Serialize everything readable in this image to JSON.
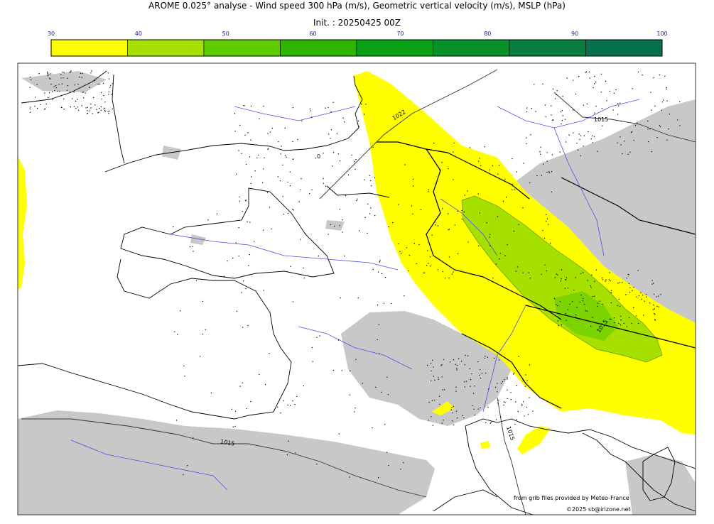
{
  "title_line1": "AROME 0.025° analyse - Wind speed 300 hPa (m/s), Geometric vertical velocity (m/s), MSLP (hPa)",
  "title_line2": "Init. : 20250425 00Z",
  "colorbar": {
    "ticks": [
      "30",
      "40",
      "50",
      "60",
      "70",
      "80",
      "90",
      "100"
    ],
    "colors": [
      "#ffff00",
      "#a6e000",
      "#5fcc00",
      "#2db500",
      "#0aa015",
      "#08902a",
      "#087f3f",
      "#086f4f"
    ]
  },
  "isobar_labels": [
    "1022",
    "1015",
    "1015",
    "1015",
    "1015",
    "0"
  ],
  "credits": {
    "line1": "from grib files provided by Meteo-France",
    "line2": "©2025 sb@irizone.net"
  }
}
